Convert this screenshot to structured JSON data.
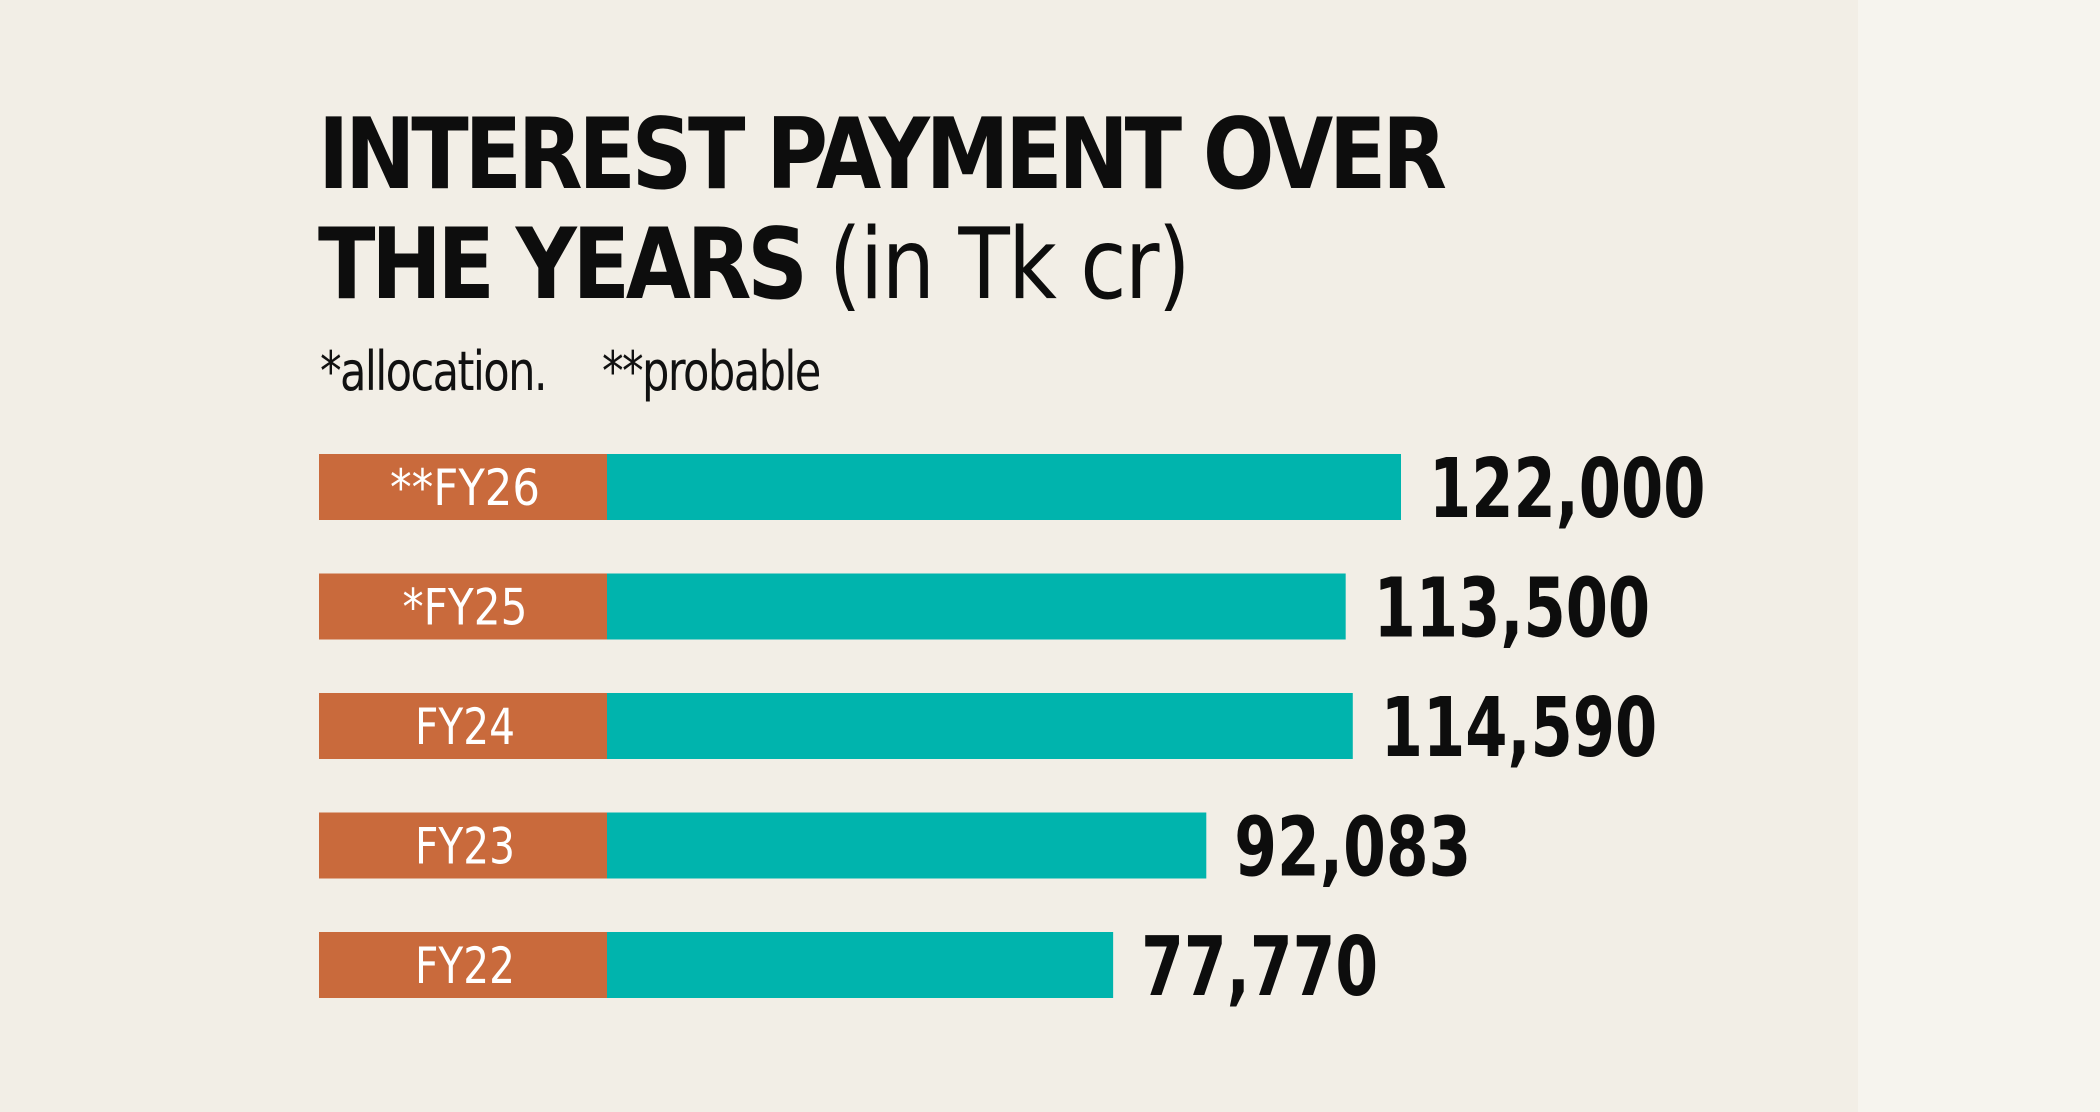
{
  "chart_data": {
    "type": "bar",
    "orientation": "horizontal",
    "title": "INTEREST PAYMENT OVER THE YEARS",
    "title_line1": "INTEREST PAYMENT OVER",
    "title_line2": "THE YEARS",
    "unit": "(in Tk cr)",
    "notes": [
      "*allocation.",
      "**probable"
    ],
    "categories": [
      "**FY26",
      "*FY25",
      "FY24",
      "FY23",
      "FY22"
    ],
    "values": [
      122000,
      113500,
      114590,
      92083,
      77770
    ],
    "value_labels": [
      "122,000",
      "113,500",
      "114,590",
      "92,083",
      "77,770"
    ],
    "xlim": [
      0,
      122000
    ],
    "colors": {
      "label_box": "#c96a3c",
      "bar": "#00b4ad",
      "background": "#f2eee6",
      "text": "#0d0d0d"
    }
  }
}
